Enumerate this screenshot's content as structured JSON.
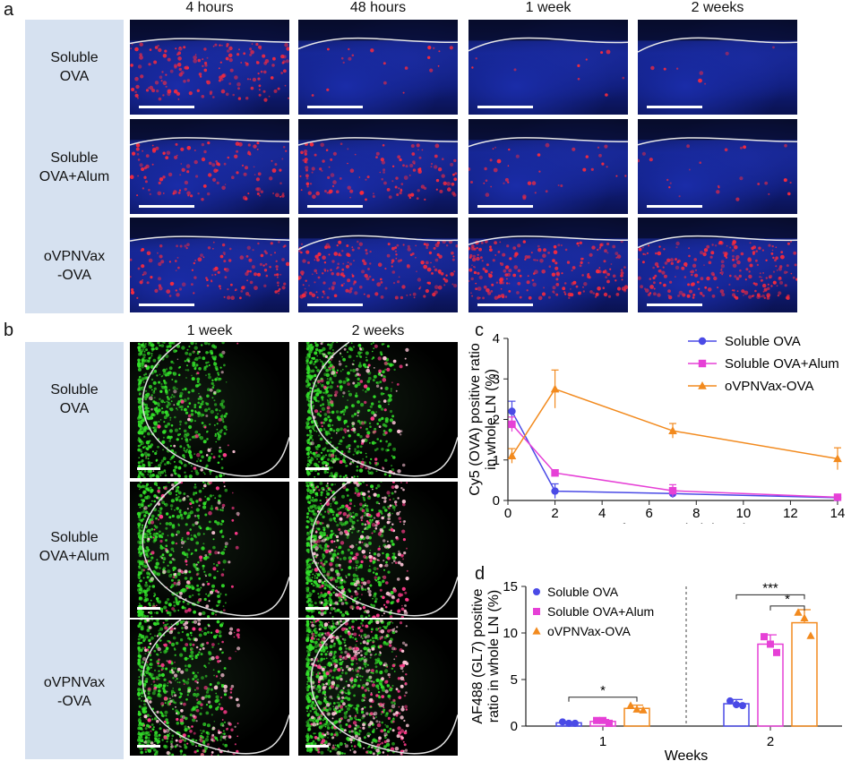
{
  "panel_a": {
    "label": "a",
    "columns": [
      "4 hours",
      "48 hours",
      "1 week",
      "2 weeks"
    ],
    "rows": [
      "Soluble\nOVA",
      "Soluble\nOVA+Alum",
      "oVPNVax\n-OVA"
    ]
  },
  "panel_b": {
    "label": "b",
    "columns": [
      "1 week",
      "2 weeks"
    ],
    "rows": [
      "Soluble\nOVA",
      "Soluble\nOVA+Alum",
      "oVPNVax\n-OVA"
    ]
  },
  "panel_c": {
    "label": "c"
  },
  "panel_d": {
    "label": "d"
  },
  "chart_data": [
    {
      "panel": "c",
      "type": "line",
      "xlabel": "Day after s.c. administration",
      "ylabel_lines": [
        "Cy5 (OVA) positive ratio",
        "in whole LN (%)"
      ],
      "xlim": [
        0,
        14
      ],
      "ylim": [
        0,
        4
      ],
      "xticks": [
        0,
        2,
        4,
        6,
        8,
        10,
        12,
        14
      ],
      "yticks": [
        0,
        1,
        2,
        3,
        4
      ],
      "x": [
        0.17,
        2,
        7,
        14
      ],
      "legend_position": "top-right",
      "series": [
        {
          "name": "Soluble OVA",
          "color": "#4a4ae6",
          "marker": "circle",
          "values": [
            2.2,
            0.23,
            0.17,
            0.07
          ],
          "errors": [
            0.25,
            0.18,
            0.1,
            0.04
          ]
        },
        {
          "name": "Soluble OVA+Alum",
          "color": "#e640d6",
          "marker": "square",
          "values": [
            1.88,
            0.68,
            0.24,
            0.08
          ],
          "errors": [
            0.18,
            0.08,
            0.15,
            0.03
          ]
        },
        {
          "name": "oVPNVax-OVA",
          "color": "#f28a1e",
          "marker": "triangle",
          "values": [
            1.1,
            2.75,
            1.72,
            1.03
          ],
          "errors": [
            0.18,
            0.47,
            0.18,
            0.27
          ]
        }
      ]
    },
    {
      "panel": "d",
      "type": "bar",
      "xlabel": "Weeks",
      "ylabel_lines": [
        "AF488 (GL7) positive",
        "ratio in whole LN (%)"
      ],
      "ylim": [
        0,
        15
      ],
      "yticks": [
        0,
        5,
        10,
        15
      ],
      "categories": [
        "1",
        "2"
      ],
      "legend_position": "top-left",
      "series": [
        {
          "name": "Soluble OVA",
          "color": "#4a4ae6",
          "marker": "circle",
          "values": [
            0.35,
            2.4
          ],
          "errors": [
            0.12,
            0.45
          ],
          "points": [
            [
              0.45,
              0.3,
              0.3
            ],
            [
              2.7,
              2.3,
              2.2
            ]
          ]
        },
        {
          "name": "Soluble OVA+Alum",
          "color": "#e640d6",
          "marker": "square",
          "values": [
            0.5,
            8.8
          ],
          "errors": [
            0.2,
            1.0
          ],
          "points": [
            [
              0.6,
              0.6,
              0.3
            ],
            [
              9.6,
              8.8,
              7.9
            ]
          ]
        },
        {
          "name": "oVPNVax-OVA",
          "color": "#f28a1e",
          "marker": "triangle",
          "values": [
            1.9,
            11.1
          ],
          "errors": [
            0.35,
            1.4
          ],
          "points": [
            [
              2.2,
              1.8,
              1.7
            ],
            [
              12.2,
              11.6,
              9.7
            ]
          ]
        }
      ],
      "significance": [
        {
          "text": "*",
          "from": [
            0,
            0
          ],
          "to": [
            0,
            2
          ],
          "y": 3.1
        },
        {
          "text": "***",
          "from": [
            1,
            0
          ],
          "to": [
            1,
            2
          ],
          "y": 14.1
        },
        {
          "text": "*",
          "from": [
            1,
            1
          ],
          "to": [
            1,
            2
          ],
          "y": 12.9
        }
      ]
    }
  ]
}
